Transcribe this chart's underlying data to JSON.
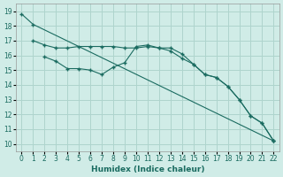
{
  "xlabel": "Humidex (Indice chaleur)",
  "bg_color": "#d0ece7",
  "grid_color": "#aed4cd",
  "line_color": "#1a6b60",
  "xlim": [
    -0.5,
    22.5
  ],
  "ylim": [
    9.5,
    19.5
  ],
  "xticks": [
    0,
    1,
    2,
    3,
    4,
    5,
    6,
    7,
    8,
    9,
    10,
    11,
    12,
    13,
    14,
    15,
    16,
    17,
    18,
    19,
    20,
    21,
    22
  ],
  "yticks": [
    10,
    11,
    12,
    13,
    14,
    15,
    16,
    17,
    18,
    19
  ],
  "line1_x": [
    0,
    1,
    22
  ],
  "line1_y": [
    18.8,
    18.1,
    10.2
  ],
  "line2_x": [
    1,
    2,
    3,
    4,
    5,
    6,
    7,
    8,
    9,
    10,
    11,
    12,
    13,
    14,
    15,
    16,
    17,
    18,
    19,
    20,
    21,
    22
  ],
  "line2_y": [
    17.0,
    16.7,
    16.5,
    16.5,
    16.6,
    16.6,
    16.6,
    16.6,
    16.5,
    16.5,
    16.6,
    16.5,
    16.3,
    15.8,
    15.4,
    14.7,
    14.5,
    13.9,
    13.0,
    11.9,
    11.4,
    10.2
  ],
  "line3_x": [
    2,
    3,
    4,
    5,
    6,
    7,
    8,
    9,
    10,
    11,
    12,
    13,
    14,
    15,
    16,
    17,
    18,
    19,
    20,
    21,
    22
  ],
  "line3_y": [
    15.9,
    15.6,
    15.1,
    15.1,
    15.0,
    14.7,
    15.2,
    15.5,
    16.6,
    16.7,
    16.5,
    16.5,
    16.1,
    15.4,
    14.7,
    14.5,
    13.9,
    13.0,
    11.9,
    11.4,
    10.2
  ]
}
